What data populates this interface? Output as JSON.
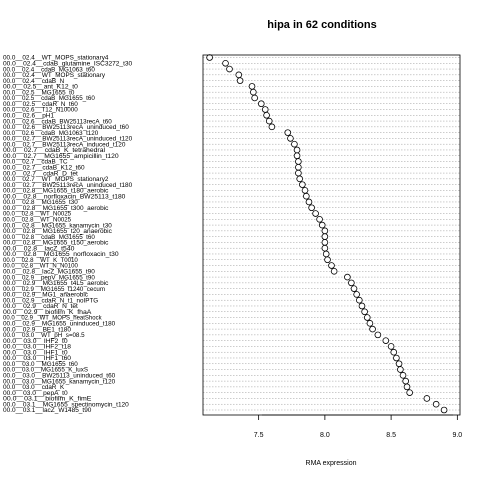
{
  "chart_data": {
    "type": "scatter",
    "title": "hipa in 62 conditions",
    "xlabel": "RMA expression",
    "ylabel": "",
    "xlim": [
      7.08,
      9.02
    ],
    "xticks": [
      "7.5",
      "8.0",
      "8.5",
      "9.0"
    ],
    "grid": true,
    "legend": "none",
    "points": [
      {
        "label": "00.0__02.4__WT_MOPS_stationary4",
        "value": 7.13
      },
      {
        "label": "00.0__02.4__cdaB_glutamine_ISC3272_t30",
        "value": 7.25
      },
      {
        "label": "00.0__02.4__cdaB_MG1063_t60",
        "value": 7.28
      },
      {
        "label": "00.0__02.4__WT_MOPS_stationary",
        "value": 7.35
      },
      {
        "label": "00.0__02.4__cdaB_N",
        "value": 7.36
      },
      {
        "label": "00.0__02.5__ant_K12_t0",
        "value": 7.45
      },
      {
        "label": "00.0__02.5__MG1655_t0",
        "value": 7.46
      },
      {
        "label": "00.0__02.5__cdaB_MG1655_t60",
        "value": 7.47
      },
      {
        "label": "00.0__02.5__cdaR_N_t60",
        "value": 7.52
      },
      {
        "label": "00.0__02.6__T12_N10000",
        "value": 7.55
      },
      {
        "label": "00.0__02.6__pH1",
        "value": 7.56
      },
      {
        "label": "00.0__02.6__cdaB_BW25113recA_t60",
        "value": 7.58
      },
      {
        "label": "00.0__02.6__BW25113recA_uninduced_t60",
        "value": 7.6
      },
      {
        "label": "00.0__02.6__cdaB_MG1063_t120",
        "value": 7.72
      },
      {
        "label": "00.0__02.7__BW25113recA_uninduced_t120",
        "value": 7.74
      },
      {
        "label": "00.0__02.7__BW25113recA_induced_t120",
        "value": 7.77
      },
      {
        "label": "00.0__02.7__cdaB_K_tetrahedral",
        "value": 7.79
      },
      {
        "label": "00.0__02.7__MG1655_ampicillin_t120",
        "value": 7.79
      },
      {
        "label": "00.0__02.7__cdaB_TC",
        "value": 7.8
      },
      {
        "label": "00.0__02.7__cdaB_K12_t60",
        "value": 7.8
      },
      {
        "label": "00.0__02.7__cdaR_D_tet",
        "value": 7.8
      },
      {
        "label": "00.0__02.7__WT_MOPS_stationary2",
        "value": 7.81
      },
      {
        "label": "00.0__02.7__BW25113recA_uninduced_t180",
        "value": 7.83
      },
      {
        "label": "00.0__02.8__MG1655_t180_aerobic",
        "value": 7.85
      },
      {
        "label": "00.0__02.8__norfloxacin_BW25113_t180",
        "value": 7.86
      },
      {
        "label": "00.0__02.8__MG1655_t30",
        "value": 7.88
      },
      {
        "label": "00.0__02.8__MG1655_t300_aerobic",
        "value": 7.9
      },
      {
        "label": "00.0__02.8__WT_N0025",
        "value": 7.93
      },
      {
        "label": "00.0__02.8__WT_N0025",
        "value": 7.96
      },
      {
        "label": "00.0__02.8__MG1655_kanamycin_t30",
        "value": 7.98
      },
      {
        "label": "00.0__02.8__MG1655_t20_anaerobic",
        "value": 8.0
      },
      {
        "label": "00.0__02.8__cdaB_MG1655_t60",
        "value": 8.0
      },
      {
        "label": "00.0__02.8__MG1655_t150_aerobic",
        "value": 8.0
      },
      {
        "label": "00.0__02.8__lacZ_t540",
        "value": 8.0
      },
      {
        "label": "00.0__02.8__MG1655_norfloxacin_t30",
        "value": 8.01
      },
      {
        "label": "00.0__02.8__WT_K_T0010",
        "value": 8.02
      },
      {
        "label": "00.0__02.8__WT_N_N0100",
        "value": 8.05
      },
      {
        "label": "00.0__02.8__lacZ_MG1655_t90",
        "value": 8.07
      },
      {
        "label": "00.0__02.9__pepV_MG1655_t90",
        "value": 8.17
      },
      {
        "label": "00.0__02.9__MG1655_t4L5_aerobic",
        "value": 8.2
      },
      {
        "label": "00.0__02.9__MG1655_t1240_cecum",
        "value": 8.22
      },
      {
        "label": "00.0__02.9__MG1_anaerobic",
        "value": 8.24
      },
      {
        "label": "00.0__02.9__cdaR_N_t1_noIPTG",
        "value": 8.26
      },
      {
        "label": "00.0__02.9__cdaR_N_tet",
        "value": 8.28
      },
      {
        "label": "00.0__02.9__biofilm_K_fhaA",
        "value": 8.3
      },
      {
        "label": "00.0__02.9__WT_MOPS_heatShock",
        "value": 8.32
      },
      {
        "label": "00.0__02.9__MG1655_uninduced_t180",
        "value": 8.34
      },
      {
        "label": "00.0__02.9__BE1_t180",
        "value": 8.36
      },
      {
        "label": "00.0__03.0__WT_pH_s=08.5",
        "value": 8.4
      },
      {
        "label": "00.0__03.0__IHF2_t0",
        "value": 8.46
      },
      {
        "label": "00.0__03.0__IHF2_t18",
        "value": 8.5
      },
      {
        "label": "00.0__03.0__IHF1_t0",
        "value": 8.52
      },
      {
        "label": "00.0__03.0__IHF1_t60",
        "value": 8.54
      },
      {
        "label": "00.0__03.0__MG1655_t60",
        "value": 8.56
      },
      {
        "label": "00.0__03.0__MG1655_K_luxS",
        "value": 8.57
      },
      {
        "label": "00.0__03.0__BW25113_uninduced_t60",
        "value": 8.59
      },
      {
        "label": "00.0__03.0__MG1655_kanamycin_t120",
        "value": 8.61
      },
      {
        "label": "00.0__03.0__cdaR_K",
        "value": 8.62
      },
      {
        "label": "00.0__03.0__pepA_t0",
        "value": 8.64
      },
      {
        "label": "00.0__03.1__biofilm_K_fimE",
        "value": 8.77
      },
      {
        "label": "00.0__03.1__MG1655_spectinomycin_t120",
        "value": 8.84
      },
      {
        "label": "00.0__03.1__lacZ_W1485_t90",
        "value": 8.9
      }
    ]
  }
}
